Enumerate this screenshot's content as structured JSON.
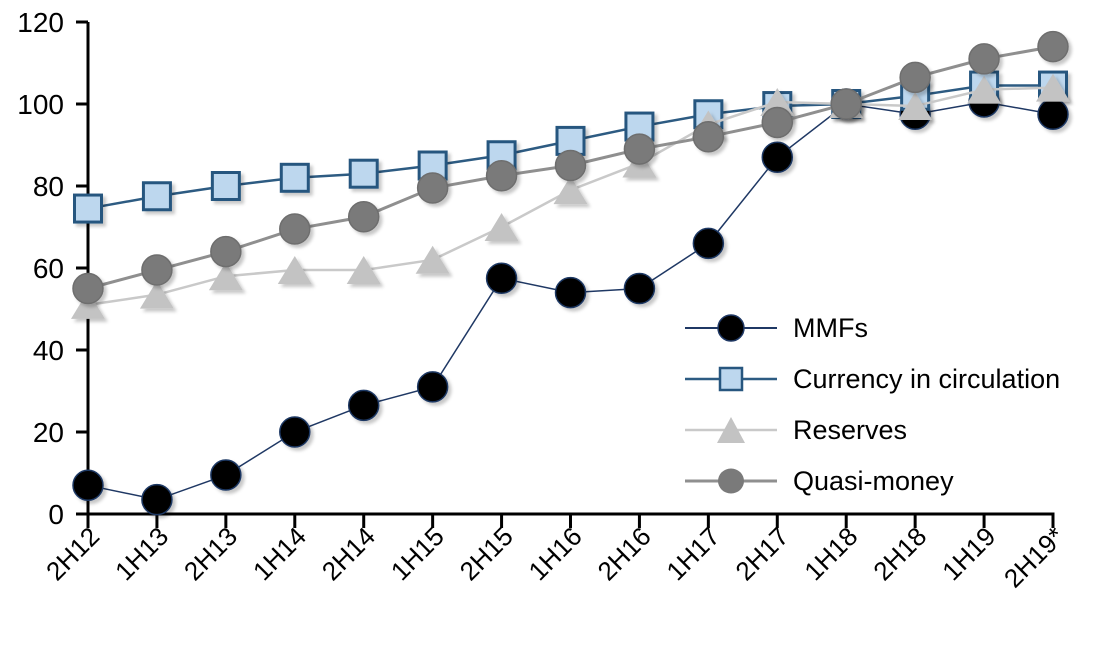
{
  "chart_data": {
    "type": "line",
    "title": "",
    "xlabel": "",
    "ylabel": "",
    "grid": false,
    "legend_position": "inside-right",
    "ylim": [
      0,
      120
    ],
    "y_ticks": [
      0,
      20,
      40,
      60,
      80,
      100,
      120
    ],
    "categories": [
      "2H12",
      "1H13",
      "2H13",
      "1H14",
      "2H14",
      "1H15",
      "2H15",
      "1H16",
      "2H16",
      "1H17",
      "2H17",
      "1H18",
      "2H18",
      "1H19",
      "2H19*"
    ],
    "series": [
      {
        "name": "MMFs",
        "marker": "circle",
        "marker_fill": "#000000",
        "marker_stroke": "#1F3864",
        "line_color": "#1F3864",
        "line_width": 1.5,
        "values": [
          7,
          3.5,
          9.5,
          20,
          26.5,
          31,
          57.5,
          54,
          55,
          66,
          87,
          100,
          97.5,
          100.5,
          97.5
        ]
      },
      {
        "name": "Currency in circulation",
        "marker": "square",
        "marker_fill": "#BDD7EE",
        "marker_stroke": "#27567F",
        "line_color": "#2D5B82",
        "line_width": 2.5,
        "values": [
          74.5,
          77.5,
          80,
          82,
          83,
          85,
          87.5,
          91,
          94.5,
          97.5,
          99.5,
          100,
          102,
          104.5,
          104.5
        ]
      },
      {
        "name": "Reserves",
        "marker": "triangle",
        "marker_fill": "#C3C3C3",
        "marker_stroke": "#BDBDBD",
        "line_color": "#C9C9C9",
        "line_width": 2.5,
        "values": [
          51,
          53.5,
          58,
          59.5,
          59.5,
          62,
          70,
          79,
          85.5,
          95,
          100.5,
          100,
          99.5,
          103.5,
          104
        ]
      },
      {
        "name": "Quasi-money",
        "marker": "circle",
        "marker_fill": "#7A7A7A",
        "marker_stroke": "#6E6E6E",
        "line_color": "#8F8F8F",
        "line_width": 3,
        "values": [
          55,
          59.5,
          64,
          69.5,
          72.5,
          79.5,
          82.5,
          85,
          89,
          92,
          95.5,
          100,
          106.5,
          111,
          114
        ]
      }
    ]
  }
}
